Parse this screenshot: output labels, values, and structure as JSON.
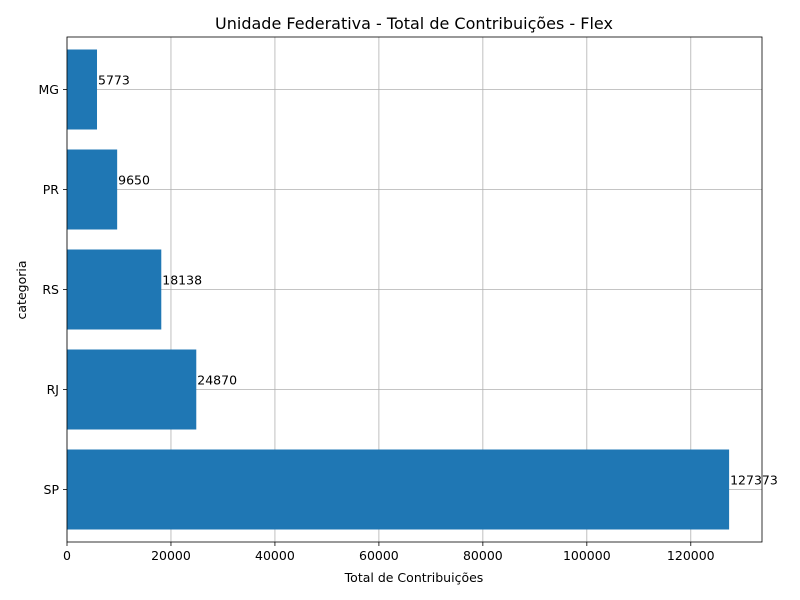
{
  "chart_data": {
    "type": "bar",
    "orientation": "horizontal",
    "title": "Unidade Federativa - Total de Contribuições - Flex",
    "xlabel": "Total de Contribuições",
    "ylabel": "categoria",
    "categories": [
      "SP",
      "RJ",
      "RS",
      "PR",
      "MG"
    ],
    "values": [
      127373,
      24870,
      18138,
      9650,
      5773
    ],
    "xlim": [
      0,
      133700
    ],
    "xticks": [
      0,
      20000,
      40000,
      60000,
      80000,
      100000,
      120000
    ],
    "grid": true,
    "legend": "none",
    "bar_color": "#1f77b4"
  }
}
